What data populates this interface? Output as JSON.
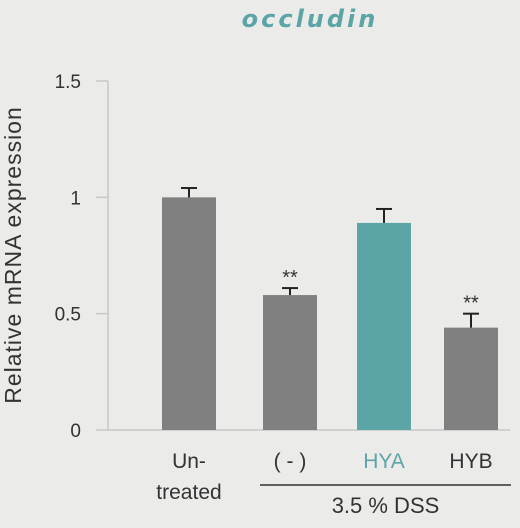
{
  "chart_data": {
    "type": "bar",
    "title": "occludin",
    "ylabel": "Relative mRNA expression",
    "xlabel": "",
    "ylim": [
      0,
      1.5
    ],
    "yticks": [
      0,
      0.5,
      1,
      1.5
    ],
    "ytick_labels": [
      "0",
      "0.5",
      "1",
      "1.5"
    ],
    "grid": false,
    "categories": [
      "Un-\ntreated",
      "( - )",
      "HYA",
      "HYB"
    ],
    "values": [
      1.0,
      0.58,
      0.89,
      0.44
    ],
    "errors": [
      0.04,
      0.03,
      0.06,
      0.06
    ],
    "significance": [
      "",
      "**",
      "",
      "**"
    ],
    "bar_colors": [
      "#808080",
      "#808080",
      "#5ba5a7",
      "#808080"
    ],
    "label_colors": [
      "#333333",
      "#333333",
      "#5ba5a7",
      "#333333"
    ],
    "group_label": "3.5 % DSS",
    "group_members": [
      1,
      2,
      3
    ]
  },
  "colors": {
    "title": "#5ba5a7",
    "axis": "#c8c8c8",
    "text": "#333333",
    "error_bar": "#222222"
  }
}
